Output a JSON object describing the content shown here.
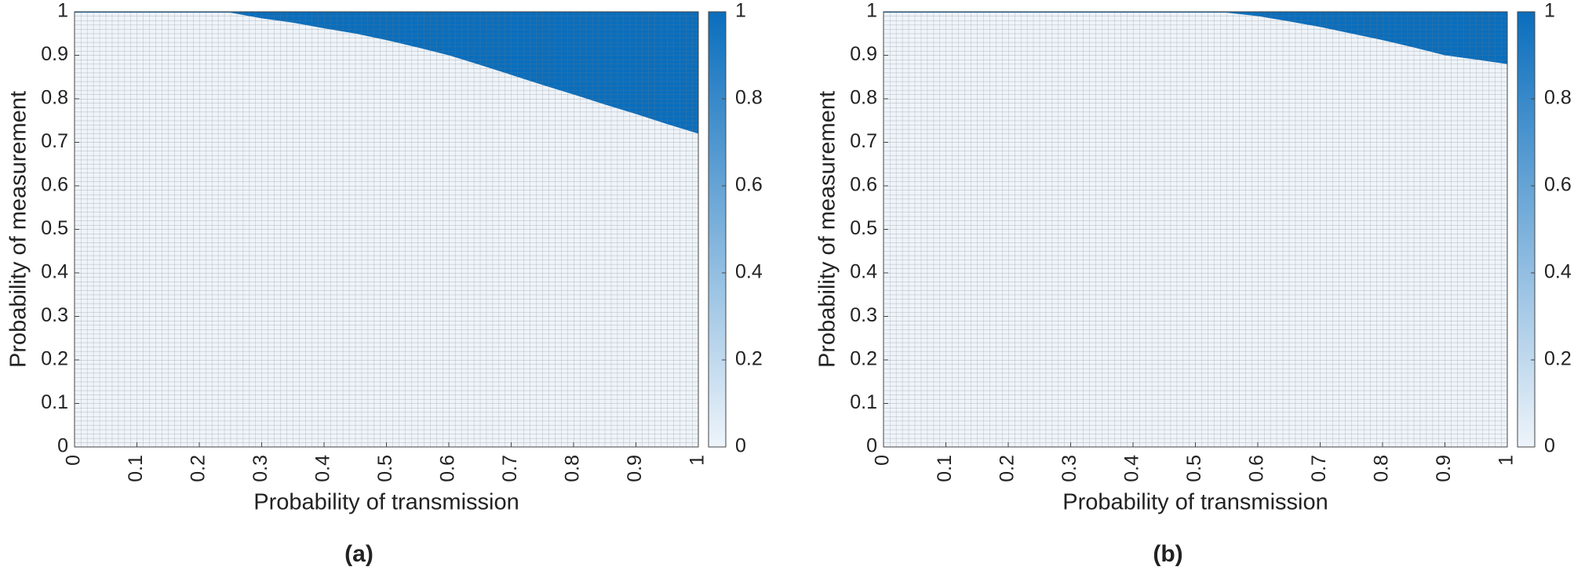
{
  "chart_data": [
    {
      "type": "heatmap",
      "caption": "(a)",
      "xlabel": "Probability of transmission",
      "ylabel": "Probability of measurement",
      "x": [
        0,
        0.05,
        0.1,
        0.15,
        0.2,
        0.25,
        0.3,
        0.35,
        0.4,
        0.45,
        0.5,
        0.55,
        0.6,
        0.65,
        0.7,
        0.75,
        0.8,
        0.85,
        0.9,
        0.95,
        1
      ],
      "values": [
        0.998,
        0.998,
        0.998,
        0.998,
        0.998,
        0.998,
        0.985,
        0.975,
        0.962,
        0.95,
        0.935,
        0.918,
        0.9,
        0.878,
        0.855,
        0.832,
        0.81,
        0.787,
        0.765,
        0.742,
        0.72
      ],
      "xlim": [
        0,
        1
      ],
      "ylim": [
        0,
        1
      ],
      "xticks": [
        0,
        0.1,
        0.2,
        0.3,
        0.4,
        0.5,
        0.6,
        0.7,
        0.8,
        0.9,
        1
      ],
      "yticks": [
        0,
        0.1,
        0.2,
        0.3,
        0.4,
        0.5,
        0.6,
        0.7,
        0.8,
        0.9,
        1
      ],
      "clim": [
        0,
        1
      ],
      "cticks": [
        0,
        0.2,
        0.4,
        0.6,
        0.8,
        1
      ],
      "colormap": [
        "#eef4fa",
        "#0a6ebd"
      ],
      "grid": true
    },
    {
      "type": "heatmap",
      "caption": "(b)",
      "xlabel": "Probability of transmission",
      "ylabel": "Probability of measurement",
      "x": [
        0,
        0.05,
        0.1,
        0.15,
        0.2,
        0.25,
        0.3,
        0.35,
        0.4,
        0.45,
        0.5,
        0.55,
        0.6,
        0.65,
        0.7,
        0.75,
        0.8,
        0.85,
        0.9,
        0.95,
        1
      ],
      "values": [
        0.998,
        0.998,
        0.998,
        0.998,
        0.998,
        0.998,
        0.998,
        0.998,
        0.998,
        0.998,
        0.998,
        0.998,
        0.99,
        0.978,
        0.965,
        0.95,
        0.935,
        0.918,
        0.9,
        0.89,
        0.88
      ],
      "xlim": [
        0,
        1
      ],
      "ylim": [
        0,
        1
      ],
      "xticks": [
        0,
        0.1,
        0.2,
        0.3,
        0.4,
        0.5,
        0.6,
        0.7,
        0.8,
        0.9,
        1
      ],
      "yticks": [
        0,
        0.1,
        0.2,
        0.3,
        0.4,
        0.5,
        0.6,
        0.7,
        0.8,
        0.9,
        1
      ],
      "clim": [
        0,
        1
      ],
      "cticks": [
        0,
        0.2,
        0.4,
        0.6,
        0.8,
        1
      ],
      "colormap": [
        "#eef4fa",
        "#0a6ebd"
      ],
      "grid": true
    }
  ]
}
